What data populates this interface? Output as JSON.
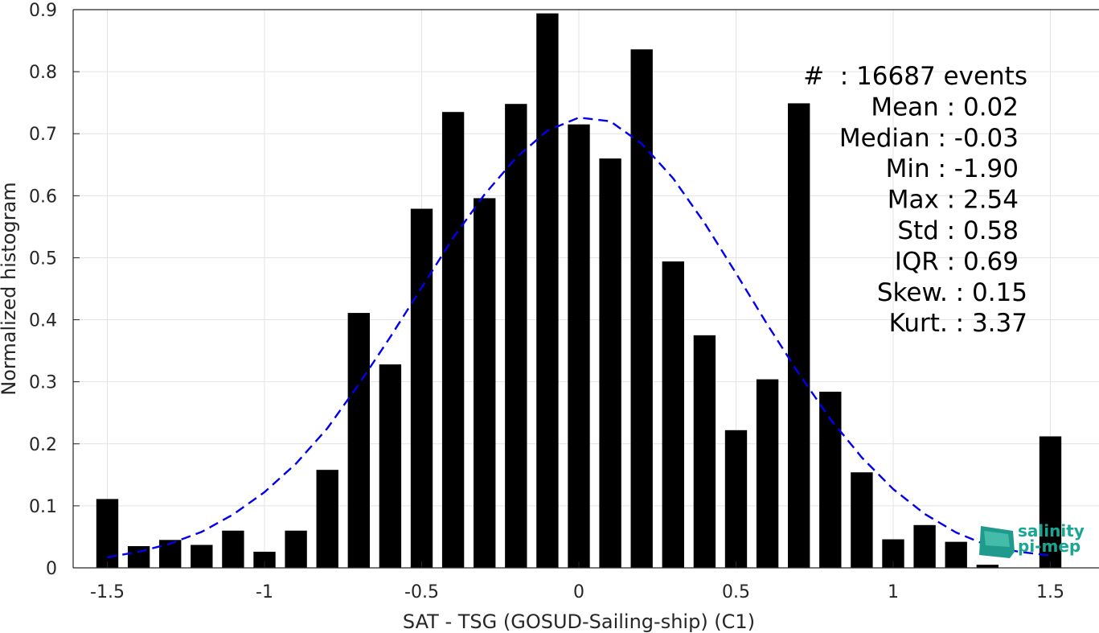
{
  "chart_data": {
    "type": "bar",
    "xlabel": "SAT - TSG (GOSUD-Sailing-ship) (C1)",
    "ylabel": "Normalized histogram",
    "xlim": [
      -1.6,
      1.6
    ],
    "ylim": [
      0,
      0.9
    ],
    "xticks": [
      -1.5,
      -1,
      -0.5,
      0,
      0.5,
      1,
      1.5
    ],
    "xtick_labels": [
      "-1.5",
      "-1",
      "-0.5",
      "0",
      "0.5",
      "1",
      "1.5"
    ],
    "yticks": [
      0,
      0.1,
      0.2,
      0.3,
      0.4,
      0.5,
      0.6,
      0.7,
      0.8,
      0.9
    ],
    "ytick_labels": [
      "0",
      "0.1",
      "0.2",
      "0.3",
      "0.4",
      "0.5",
      "0.6",
      "0.7",
      "0.8",
      "0.9"
    ],
    "grid": true,
    "bar_color": "#000000",
    "bins": [
      -1.5,
      -1.4,
      -1.3,
      -1.2,
      -1.1,
      -1.0,
      -0.9,
      -0.8,
      -0.7,
      -0.6,
      -0.5,
      -0.4,
      -0.3,
      -0.2,
      -0.1,
      0.0,
      0.1,
      0.2,
      0.3,
      0.4,
      0.5,
      0.6,
      0.7,
      0.8,
      0.9,
      1.0,
      1.1,
      1.2,
      1.3,
      1.5
    ],
    "values": [
      0.111,
      0.035,
      0.045,
      0.037,
      0.06,
      0.026,
      0.06,
      0.158,
      0.411,
      0.328,
      0.579,
      0.735,
      0.596,
      0.748,
      0.894,
      0.715,
      0.66,
      0.836,
      0.494,
      0.375,
      0.222,
      0.304,
      0.749,
      0.284,
      0.154,
      0.046,
      0.069,
      0.042,
      0.005,
      0.212
    ],
    "fit_curve": {
      "style": "dashed",
      "color": "#0000ee",
      "x": [
        -1.5,
        -1.4,
        -1.3,
        -1.2,
        -1.1,
        -1.0,
        -0.9,
        -0.8,
        -0.7,
        -0.6,
        -0.5,
        -0.4,
        -0.3,
        -0.2,
        -0.1,
        0.0,
        0.1,
        0.2,
        0.3,
        0.4,
        0.5,
        0.6,
        0.7,
        0.8,
        0.9,
        1.0,
        1.1,
        1.2,
        1.3,
        1.4,
        1.5
      ],
      "y": [
        0.017,
        0.026,
        0.039,
        0.058,
        0.086,
        0.122,
        0.168,
        0.225,
        0.296,
        0.372,
        0.452,
        0.532,
        0.602,
        0.661,
        0.705,
        0.726,
        0.72,
        0.684,
        0.628,
        0.556,
        0.475,
        0.392,
        0.313,
        0.24,
        0.178,
        0.127,
        0.087,
        0.057,
        0.036,
        0.026,
        0.02
      ]
    },
    "stats_lines": [
      "#  : 16687 events",
      "Mean : 0.02",
      "Median : -0.03",
      "Min : -1.90",
      "Max : 2.54",
      "Std : 0.58",
      "IQR : 0.69",
      "Skew. : 0.15",
      "Kurt. : 3.37"
    ]
  },
  "logo": {
    "line1": "salinity",
    "line2": "pi-mep",
    "color": "#1aa692"
  }
}
